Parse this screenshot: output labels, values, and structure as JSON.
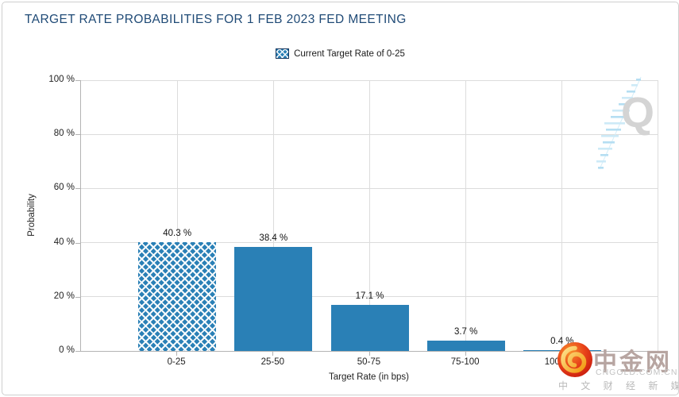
{
  "chart_data": {
    "type": "bar",
    "title": "TARGET RATE PROBABILITIES FOR 1 FEB 2023 FED MEETING",
    "xlabel": "Target Rate (in bps)",
    "ylabel": "Probability",
    "ylim": [
      0,
      100
    ],
    "grid": true,
    "legend_position": "top-center",
    "legend": "Current Target Rate of 0-25",
    "categories": [
      "0-25",
      "25-50",
      "50-75",
      "75-100",
      "100-125"
    ],
    "values": [
      40.3,
      38.4,
      17.1,
      3.7,
      0.4
    ],
    "value_labels": [
      "40.3 %",
      "38.4 %",
      "17.1 %",
      "3.7 %",
      "0.4 %"
    ],
    "current_rate_index": 0,
    "y_ticks": [
      {
        "value": 0,
        "label": "0 %"
      },
      {
        "value": 20,
        "label": "20 %"
      },
      {
        "value": 40,
        "label": "40 %"
      },
      {
        "value": 60,
        "label": "60 %"
      },
      {
        "value": 80,
        "label": "80 %"
      },
      {
        "value": 100,
        "label": "100 %"
      }
    ]
  },
  "legend": {
    "label": "Current Target Rate of 0-25"
  },
  "colors": {
    "bar": "#2a80b6",
    "title": "#1f4a76",
    "grid": "#dcdcdc",
    "axis": "#b3b3b3"
  },
  "watermarks": {
    "q_letter": "Q",
    "cngold": {
      "name_cn": "中金网",
      "domain": "CNGOLD.COM.CN",
      "tagline": "中 文 财 经 新 媒 体"
    }
  }
}
